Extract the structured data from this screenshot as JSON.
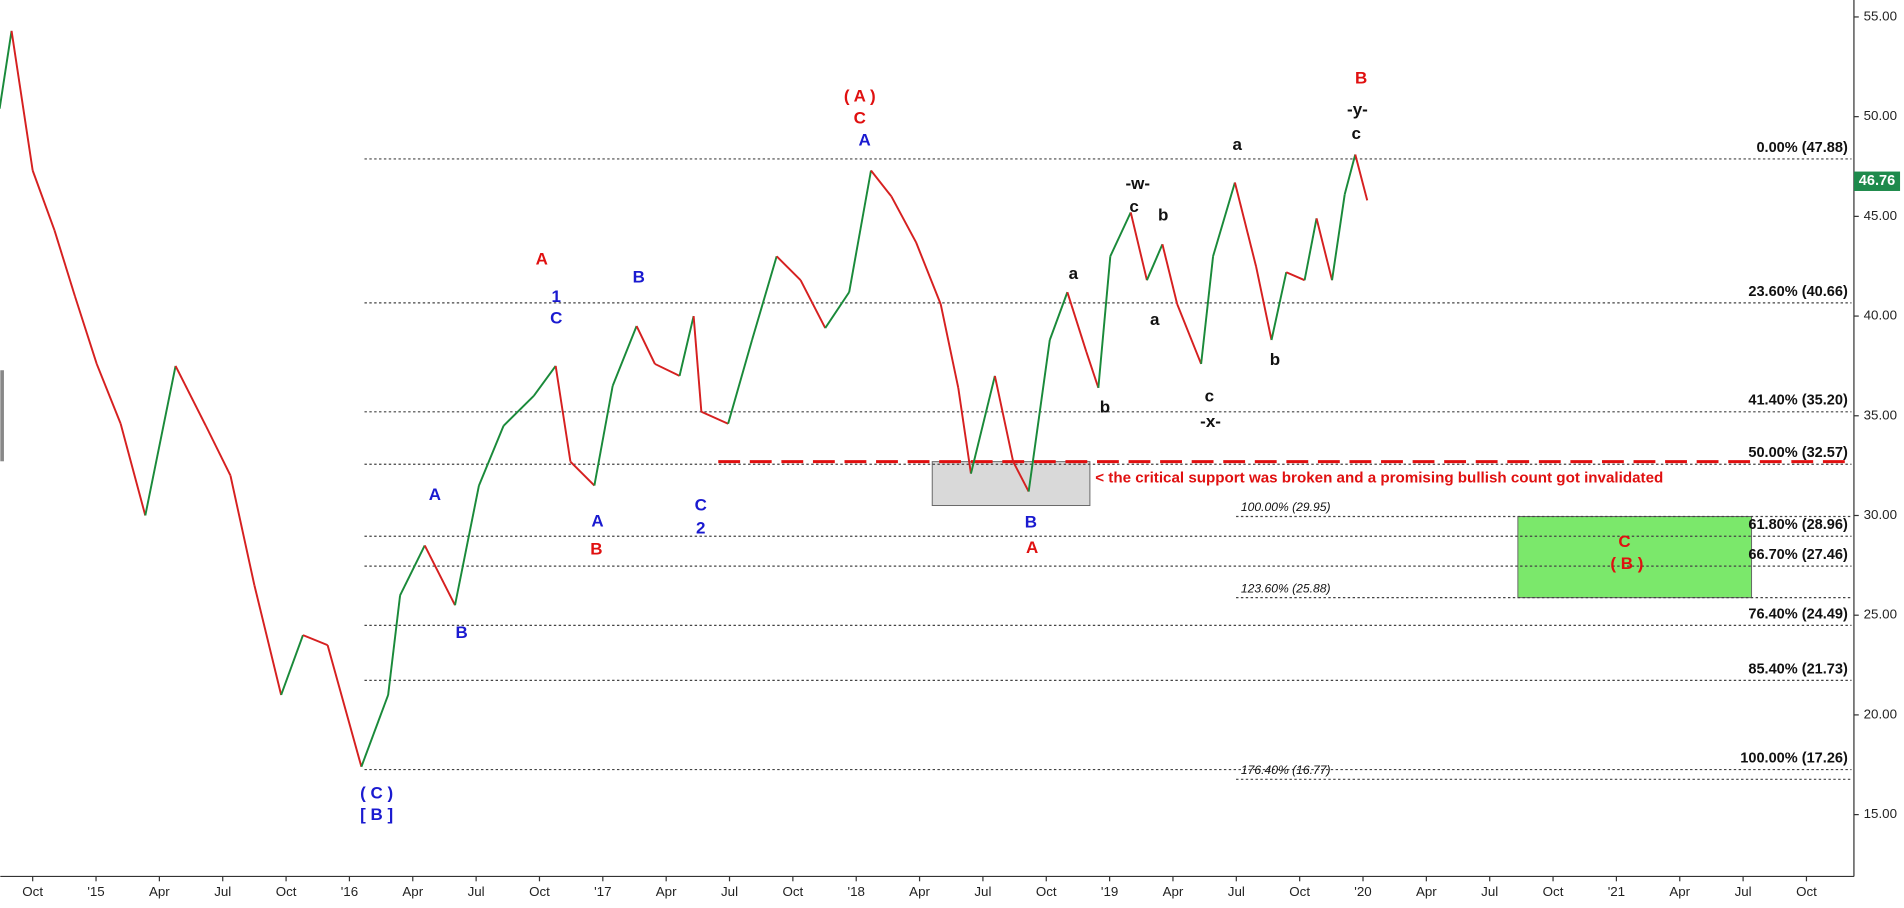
{
  "chart_data": {
    "type": "line",
    "x": [
      "2014-08-14",
      "2014-09-01",
      "2014-10-01",
      "2014-11-02",
      "2014-12-01",
      "2015-01-02",
      "2015-02-06",
      "2015-03-11",
      "2015-04-24",
      "2015-06-07",
      "2015-07-12",
      "2015-08-16",
      "2015-09-24",
      "2015-10-25",
      "2015-11-30",
      "2016-01-18",
      "2016-02-26",
      "2016-03-13",
      "2016-04-18",
      "2016-06-01",
      "2016-07-05",
      "2016-08-10",
      "2016-09-23",
      "2016-10-24",
      "2016-11-15",
      "2016-12-19",
      "2017-01-15",
      "2017-02-19",
      "2017-03-15",
      "2017-04-20",
      "2017-05-10",
      "2017-05-21",
      "2017-06-29",
      "2017-08-03",
      "2017-09-08",
      "2017-10-12",
      "2017-11-17",
      "2017-12-21",
      "2018-01-22",
      "2018-02-21",
      "2018-03-26",
      "2018-05-01",
      "2018-05-26",
      "2018-06-14",
      "2018-07-18",
      "2018-08-14",
      "2018-09-06",
      "2018-10-06",
      "2018-11-01",
      "2018-11-28",
      "2018-12-15",
      "2019-01-02",
      "2019-02-01",
      "2019-02-24",
      "2019-03-16",
      "2019-04-07",
      "2019-05-11",
      "2019-05-28",
      "2019-06-29",
      "2019-07-29",
      "2019-08-21",
      "2019-09-12",
      "2019-10-08",
      "2019-10-25",
      "2019-11-17",
      "2019-12-05",
      "2019-12-20",
      "2020-01-07"
    ],
    "values": [
      50.4,
      54.3,
      47.3,
      44.3,
      41,
      37.6,
      34.6,
      30,
      37.5,
      34.5,
      32,
      26.5,
      21,
      24,
      23.5,
      17.4,
      21,
      26,
      28.5,
      25.5,
      31.5,
      34.5,
      36,
      37.5,
      32.7,
      31.5,
      36.5,
      39.5,
      37.6,
      37,
      40,
      35.2,
      34.6,
      38.8,
      43,
      41.8,
      39.4,
      41.2,
      47.3,
      46,
      43.7,
      40.6,
      36.4,
      32.1,
      37,
      32.7,
      31.2,
      38.8,
      41.2,
      38.2,
      36.4,
      43,
      45.2,
      41.8,
      43.6,
      40.6,
      37.6,
      43,
      46.7,
      42.5,
      38.8,
      42.2,
      41.8,
      44.9,
      41.8,
      46.1,
      48.1,
      45.8
    ],
    "up_color": "#1a8a3a",
    "down_color": "#d62020",
    "last_value": 46.76,
    "last_value_color": "#1e8a4c",
    "xlim": [
      "2014-08-15",
      "2021-12-05"
    ],
    "xticks": [
      {
        "value": "2014-10-01",
        "label": "Oct"
      },
      {
        "value": "2015-01-01",
        "label": "'15"
      },
      {
        "value": "2015-04-01",
        "label": "Apr"
      },
      {
        "value": "2015-07-01",
        "label": "Jul"
      },
      {
        "value": "2015-10-01",
        "label": "Oct"
      },
      {
        "value": "2016-01-01",
        "label": "'16"
      },
      {
        "value": "2016-04-01",
        "label": "Apr"
      },
      {
        "value": "2016-07-01",
        "label": "Jul"
      },
      {
        "value": "2016-10-01",
        "label": "Oct"
      },
      {
        "value": "2017-01-01",
        "label": "'17"
      },
      {
        "value": "2017-04-01",
        "label": "Apr"
      },
      {
        "value": "2017-07-01",
        "label": "Jul"
      },
      {
        "value": "2017-10-01",
        "label": "Oct"
      },
      {
        "value": "2018-01-01",
        "label": "'18"
      },
      {
        "value": "2018-04-01",
        "label": "Apr"
      },
      {
        "value": "2018-07-01",
        "label": "Jul"
      },
      {
        "value": "2018-10-01",
        "label": "Oct"
      },
      {
        "value": "2019-01-01",
        "label": "'19"
      },
      {
        "value": "2019-04-01",
        "label": "Apr"
      },
      {
        "value": "2019-07-01",
        "label": "Jul"
      },
      {
        "value": "2019-10-01",
        "label": "Oct"
      },
      {
        "value": "2020-01-01",
        "label": "'20"
      },
      {
        "value": "2020-04-01",
        "label": "Apr"
      },
      {
        "value": "2020-07-01",
        "label": "Jul"
      },
      {
        "value": "2020-10-01",
        "label": "Oct"
      },
      {
        "value": "2021-01-01",
        "label": "'21"
      },
      {
        "value": "2021-04-01",
        "label": "Apr"
      },
      {
        "value": "2021-07-01",
        "label": "Jul"
      },
      {
        "value": "2021-10-01",
        "label": "Oct"
      }
    ],
    "ylim": [
      11.9,
      55.85
    ],
    "yticks": [
      {
        "value": 15,
        "label": "15.00"
      },
      {
        "value": 20,
        "label": "20.00"
      },
      {
        "value": 25,
        "label": "25.00"
      },
      {
        "value": 30,
        "label": "30.00"
      },
      {
        "value": 35,
        "label": "35.00"
      },
      {
        "value": 40,
        "label": "40.00"
      },
      {
        "value": 45,
        "label": "45.00"
      },
      {
        "value": 50,
        "label": "50.00"
      },
      {
        "value": 55,
        "label": "55.00"
      }
    ],
    "fib_levels": [
      {
        "label": "0.00% (47.88)",
        "value": 47.88
      },
      {
        "label": "23.60% (40.66)",
        "value": 40.66
      },
      {
        "label": "41.40% (35.20)",
        "value": 35.2
      },
      {
        "label": "50.00% (32.57)",
        "value": 32.57
      },
      {
        "label": "61.80% (28.96)",
        "value": 28.96
      },
      {
        "label": "66.70% (27.46)",
        "value": 27.46
      },
      {
        "label": "76.40% (24.49)",
        "value": 24.49
      },
      {
        "label": "85.40% (21.73)",
        "value": 21.73
      },
      {
        "label": "100.00% (17.26)",
        "value": 17.26
      }
    ],
    "fib_extensions": [
      {
        "label": "100.00% (29.95)",
        "value": 29.95
      },
      {
        "label": "123.60% (25.88)",
        "value": 25.88
      },
      {
        "label": "176.40% (16.77)",
        "value": 16.77
      }
    ],
    "support_line": {
      "value": 32.7,
      "from": "2017-06-15",
      "color": "#e01010",
      "annotation": "< the critical support was broken and a promising bullish count got invalidated"
    },
    "zones": [
      {
        "x": [
          "2018-04-19",
          "2018-12-03"
        ],
        "y": [
          30.5,
          32.7
        ],
        "color": "#d9d9d9"
      },
      {
        "x": [
          "2020-08-11",
          "2021-07-13"
        ],
        "y": [
          25.88,
          29.95
        ],
        "color": "#7be86b"
      }
    ],
    "wave_labels": [
      {
        "text": "( A )",
        "color": "#e01010"
      },
      {
        "text": "C",
        "color": "#e01010"
      },
      {
        "text": "A",
        "color": "#1a1ad0"
      },
      {
        "text": "A",
        "color": "#e01010"
      },
      {
        "text": "1",
        "color": "#1a1ad0"
      },
      {
        "text": "C",
        "color": "#1a1ad0"
      },
      {
        "text": "B",
        "color": "#1a1ad0"
      },
      {
        "text": "A",
        "color": "#1a1ad0"
      },
      {
        "text": "B",
        "color": "#1a1ad0"
      },
      {
        "text": "( C )",
        "color": "#1a1ad0"
      },
      {
        "text": "[ B ]",
        "color": "#1a1ad0"
      },
      {
        "text": "A",
        "color": "#1a1ad0"
      },
      {
        "text": "B",
        "color": "#e01010"
      },
      {
        "text": "C",
        "color": "#1a1ad0"
      },
      {
        "text": "2",
        "color": "#1a1ad0"
      },
      {
        "text": "B",
        "color": "#1a1ad0"
      },
      {
        "text": "A",
        "color": "#e01010"
      },
      {
        "text": "a",
        "color": "#111"
      },
      {
        "text": "b",
        "color": "#111"
      },
      {
        "text": "-w-",
        "color": "#111"
      },
      {
        "text": "c",
        "color": "#111"
      },
      {
        "text": "b",
        "color": "#111"
      },
      {
        "text": "a",
        "color": "#111"
      },
      {
        "text": "c",
        "color": "#111"
      },
      {
        "text": "-x-",
        "color": "#111"
      },
      {
        "text": "a",
        "color": "#111"
      },
      {
        "text": "b",
        "color": "#111"
      },
      {
        "text": "B",
        "color": "#e01010"
      },
      {
        "text": "-y-",
        "color": "#111"
      },
      {
        "text": "c",
        "color": "#111"
      },
      {
        "text": "C",
        "color": "#e01010"
      },
      {
        "text": "( B )",
        "color": "#e01010"
      }
    ]
  }
}
